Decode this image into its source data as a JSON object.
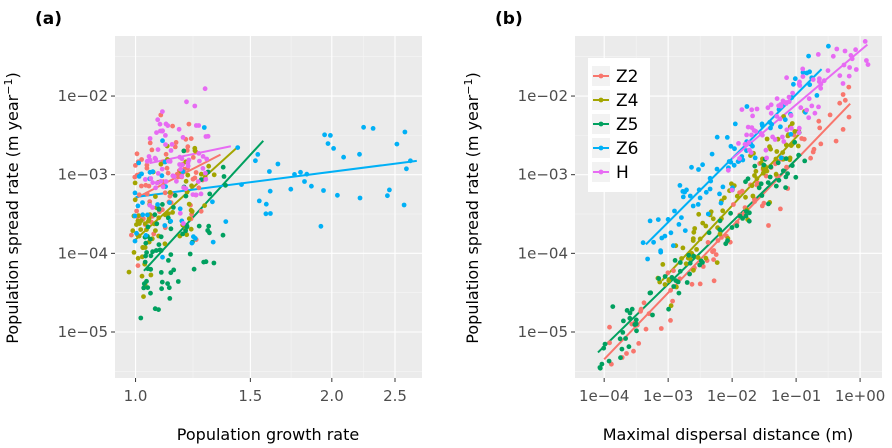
{
  "chart_data": [
    {
      "panel": "(a)",
      "type": "scatter",
      "xlabel": "Population growth rate",
      "ylabel": "Population spread rate (m year",
      "ylabel_sup": "−1",
      "ylabel_close": ")",
      "xscale": "log",
      "yscale": "log",
      "xlim": [
        0.93,
        2.75
      ],
      "ylim": [
        2.6e-06,
        0.058
      ],
      "x_ticks": [
        1.0,
        1.5,
        2.0,
        2.5
      ],
      "x_tick_labels": [
        "1.0",
        "1.5",
        "2.0",
        "2.5"
      ],
      "y_ticks": [
        1e-05,
        0.0001,
        0.001,
        0.01
      ],
      "y_tick_labels": [
        "1e−05",
        "1e−04",
        "1e−03",
        "1e−02"
      ],
      "background": "#ebebeb",
      "grid": true,
      "series": [
        {
          "name": "Z2",
          "color": "#F8766D",
          "trend": [
            [
              1.0,
              0.0005
            ],
            [
              1.35,
              0.0018
            ]
          ]
        },
        {
          "name": "Z4",
          "color": "#A3A500",
          "trend": [
            [
              1.0,
              0.00015
            ],
            [
              1.43,
              0.0022
            ]
          ]
        },
        {
          "name": "Z5",
          "color": "#00A05F",
          "trend": [
            [
              1.03,
              6e-05
            ],
            [
              1.57,
              0.0027
            ]
          ]
        },
        {
          "name": "Z6",
          "color": "#00B0F6",
          "trend": [
            [
              1.0,
              0.00052
            ],
            [
              2.7,
              0.0015
            ]
          ]
        },
        {
          "name": "H",
          "color": "#E76BF3",
          "trend": [
            [
              1.05,
              0.0014
            ],
            [
              1.4,
              0.0023
            ]
          ]
        }
      ]
    },
    {
      "panel": "(b)",
      "type": "scatter",
      "xlabel": "Maximal dispersal distance (m)",
      "ylabel": "Population spread rate (m year",
      "ylabel_sup": "−1",
      "ylabel_close": ")",
      "xscale": "log",
      "yscale": "log",
      "xlim": [
        3.5e-05,
        2.2
      ],
      "ylim": [
        2.6e-06,
        0.058
      ],
      "x_ticks": [
        0.0001,
        0.001,
        0.01,
        0.1,
        1
      ],
      "x_tick_labels": [
        "1e−04",
        "1e−03",
        "1e−02",
        "1e−01",
        "1e+00"
      ],
      "y_ticks": [
        1e-05,
        0.0001,
        0.001,
        0.01
      ],
      "y_tick_labels": [
        "1e−05",
        "1e−04",
        "1e−03",
        "1e−02"
      ],
      "background": "#ebebeb",
      "grid": true,
      "legend_position": "top-left",
      "series": [
        {
          "name": "Z2",
          "color": "#F8766D",
          "trend": [
            [
              0.0001,
              4.5e-06
            ],
            [
              0.7,
              0.008
            ]
          ]
        },
        {
          "name": "Z4",
          "color": "#A3A500",
          "trend": [
            [
              0.0008,
              4.5e-05
            ],
            [
              0.12,
              0.0035
            ]
          ]
        },
        {
          "name": "Z5",
          "color": "#00A05F",
          "trend": [
            [
              8e-05,
              5.5e-06
            ],
            [
              0.12,
              0.0018
            ]
          ]
        },
        {
          "name": "Z6",
          "color": "#00B0F6",
          "trend": [
            [
              0.00045,
              0.00013
            ],
            [
              0.25,
              0.022
            ]
          ]
        },
        {
          "name": "H",
          "color": "#E76BF3",
          "trend": [
            [
              0.01,
              0.0016
            ],
            [
              1.3,
              0.045
            ]
          ]
        }
      ]
    }
  ]
}
